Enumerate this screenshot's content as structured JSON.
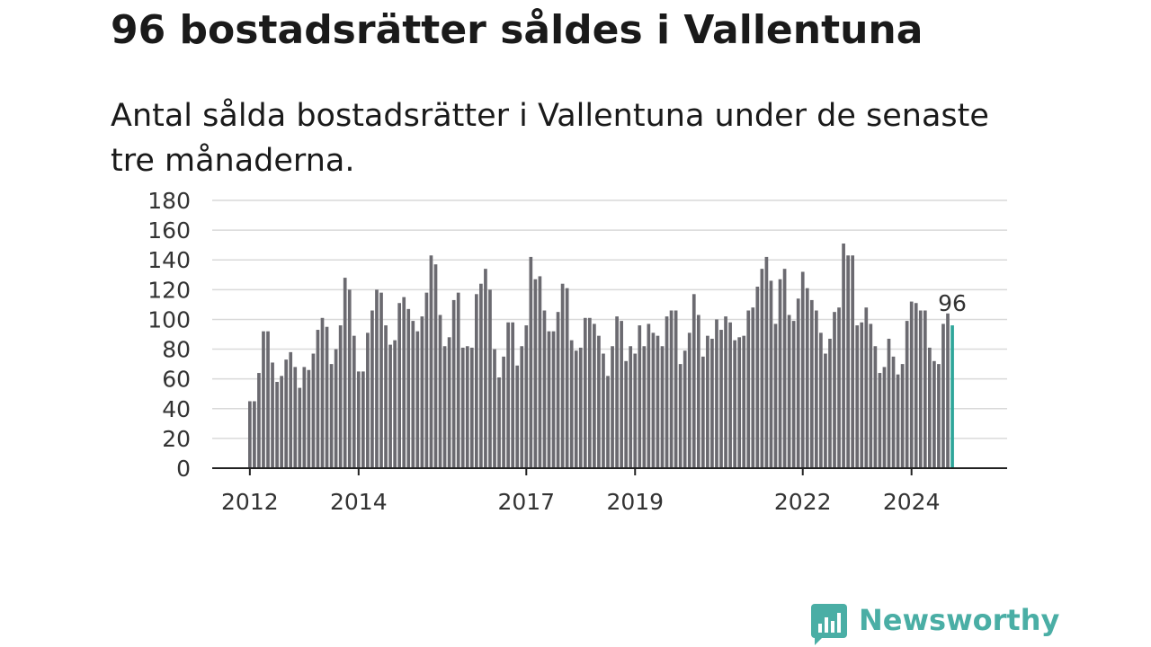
{
  "title": "96 bostadsrätter såldes i Vallentuna",
  "subtitle": "Antal sålda bostadsrätter i Vallentuna under de senaste tre månaderna.",
  "brand": "Newsworthy",
  "colors": {
    "bar": "#6b6a70",
    "highlight": "#2fa69a",
    "grid": "#d9d9d9",
    "axis": "#222222",
    "brand": "#4aaea5"
  },
  "chart_data": {
    "type": "bar",
    "title": "96 bostadsrätter såldes i Vallentuna",
    "ylim": [
      0,
      180
    ],
    "yticks": [
      0,
      20,
      40,
      60,
      80,
      100,
      120,
      140,
      160,
      180
    ],
    "xticks": [
      "2012",
      "2014",
      "2017",
      "2019",
      "2022",
      "2024"
    ],
    "grid": true,
    "annotation": "96",
    "values": [
      45,
      45,
      64,
      92,
      92,
      71,
      58,
      62,
      73,
      78,
      68,
      54,
      68,
      66,
      77,
      93,
      101,
      95,
      70,
      80,
      96,
      128,
      120,
      89,
      65,
      65,
      91,
      106,
      120,
      118,
      96,
      83,
      86,
      111,
      115,
      107,
      99,
      92,
      102,
      118,
      143,
      137,
      103,
      82,
      88,
      113,
      118,
      81,
      82,
      81,
      117,
      124,
      134,
      120,
      80,
      61,
      75,
      98,
      98,
      69,
      82,
      96,
      142,
      127,
      129,
      106,
      92,
      92,
      105,
      124,
      121,
      86,
      79,
      81,
      101,
      101,
      97,
      89,
      77,
      62,
      82,
      102,
      99,
      72,
      82,
      77,
      96,
      82,
      97,
      91,
      89,
      82,
      102,
      106,
      106,
      70,
      79,
      91,
      117,
      103,
      75,
      89,
      87,
      100,
      93,
      102,
      98,
      86,
      88,
      89,
      106,
      108,
      122,
      134,
      142,
      126,
      97,
      127,
      134,
      103,
      99,
      114,
      132,
      121,
      113,
      106,
      91,
      77,
      87,
      105,
      108,
      151,
      143,
      143,
      96,
      98,
      108,
      97,
      82,
      64,
      68,
      87,
      75,
      63,
      70,
      99,
      112,
      111,
      106,
      106,
      81,
      72,
      70,
      97,
      104,
      96
    ]
  }
}
